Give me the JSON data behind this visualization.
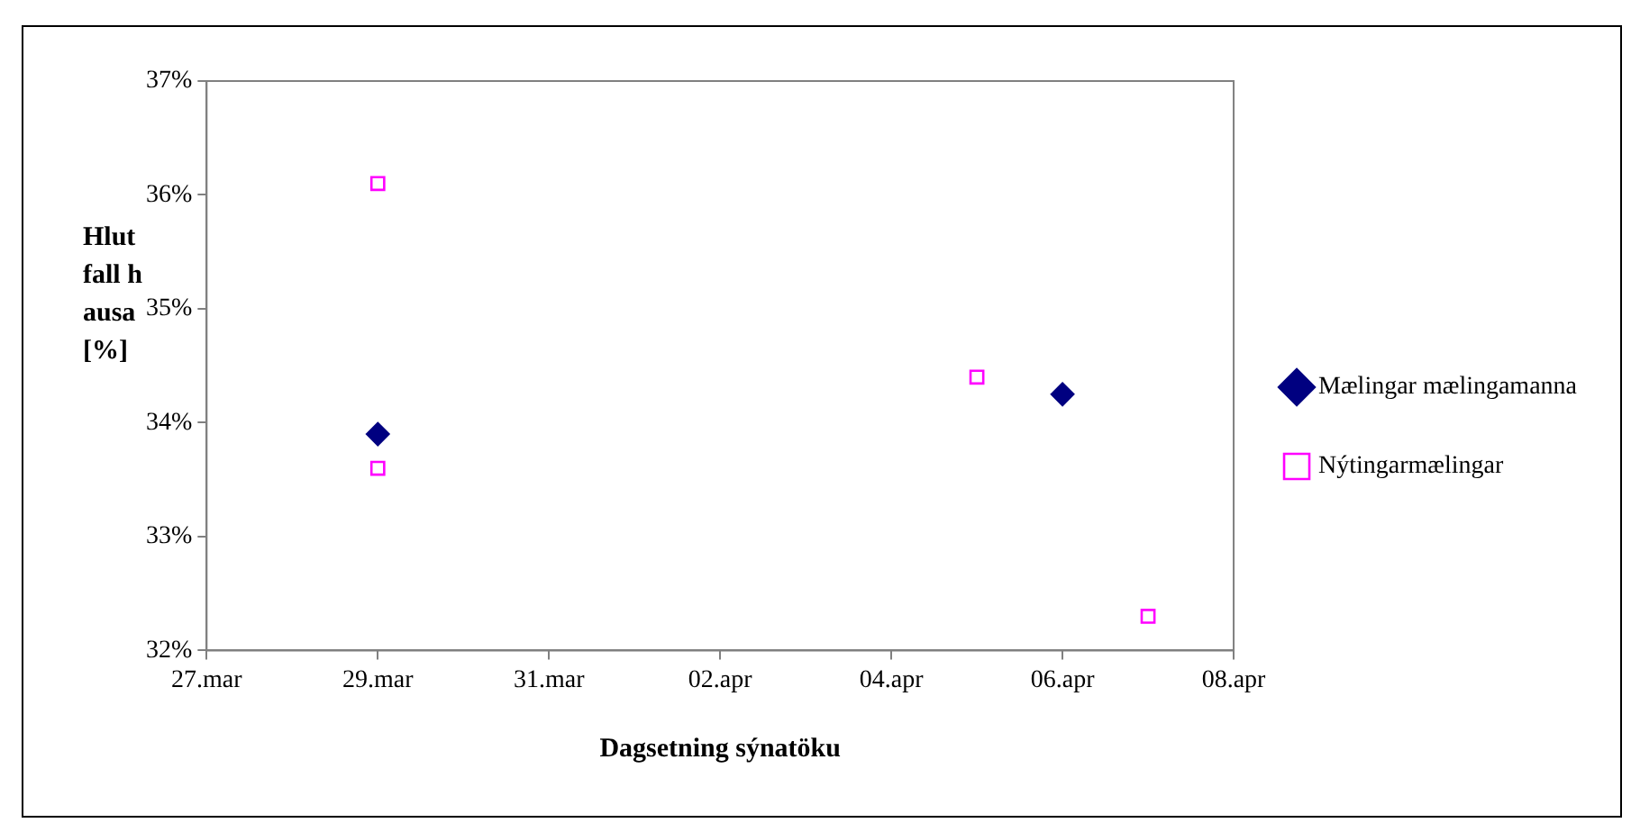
{
  "chart_data": {
    "type": "scatter",
    "xlabel": "Dagsetning sýnatöku",
    "ylabel": "Hlutfall hausa [%]",
    "xlim": [
      "--03-27",
      "--04-08"
    ],
    "xticks": [
      {
        "value": "--03-27",
        "label": "27.mar"
      },
      {
        "value": "--03-29",
        "label": "29.mar"
      },
      {
        "value": "--03-31",
        "label": "31.mar"
      },
      {
        "value": "--04-02",
        "label": "02.apr"
      },
      {
        "value": "--04-04",
        "label": "04.apr"
      },
      {
        "value": "--04-06",
        "label": "06.apr"
      },
      {
        "value": "--04-08",
        "label": "08.apr"
      }
    ],
    "ylim": [
      32,
      37
    ],
    "yticks": [
      {
        "value": 32,
        "label": "32%"
      },
      {
        "value": 33,
        "label": "33%"
      },
      {
        "value": 34,
        "label": "34%"
      },
      {
        "value": 35,
        "label": "35%"
      },
      {
        "value": 36,
        "label": "36%"
      },
      {
        "value": 37,
        "label": "37%"
      }
    ],
    "grid": false,
    "legend": "right",
    "series": [
      {
        "name": "Mælingar mælingamanna",
        "color": "#000080",
        "marker": "diamond",
        "x": [
          "--03-29",
          "--04-06"
        ],
        "values": [
          33.9,
          34.25
        ]
      },
      {
        "name": "Nýtingarmælingar",
        "color": "#ff00ff",
        "marker": "square",
        "x": [
          "--03-29",
          "--03-29",
          "--04-05",
          "--04-07"
        ],
        "values": [
          36.1,
          33.6,
          34.4,
          32.3
        ]
      }
    ]
  }
}
